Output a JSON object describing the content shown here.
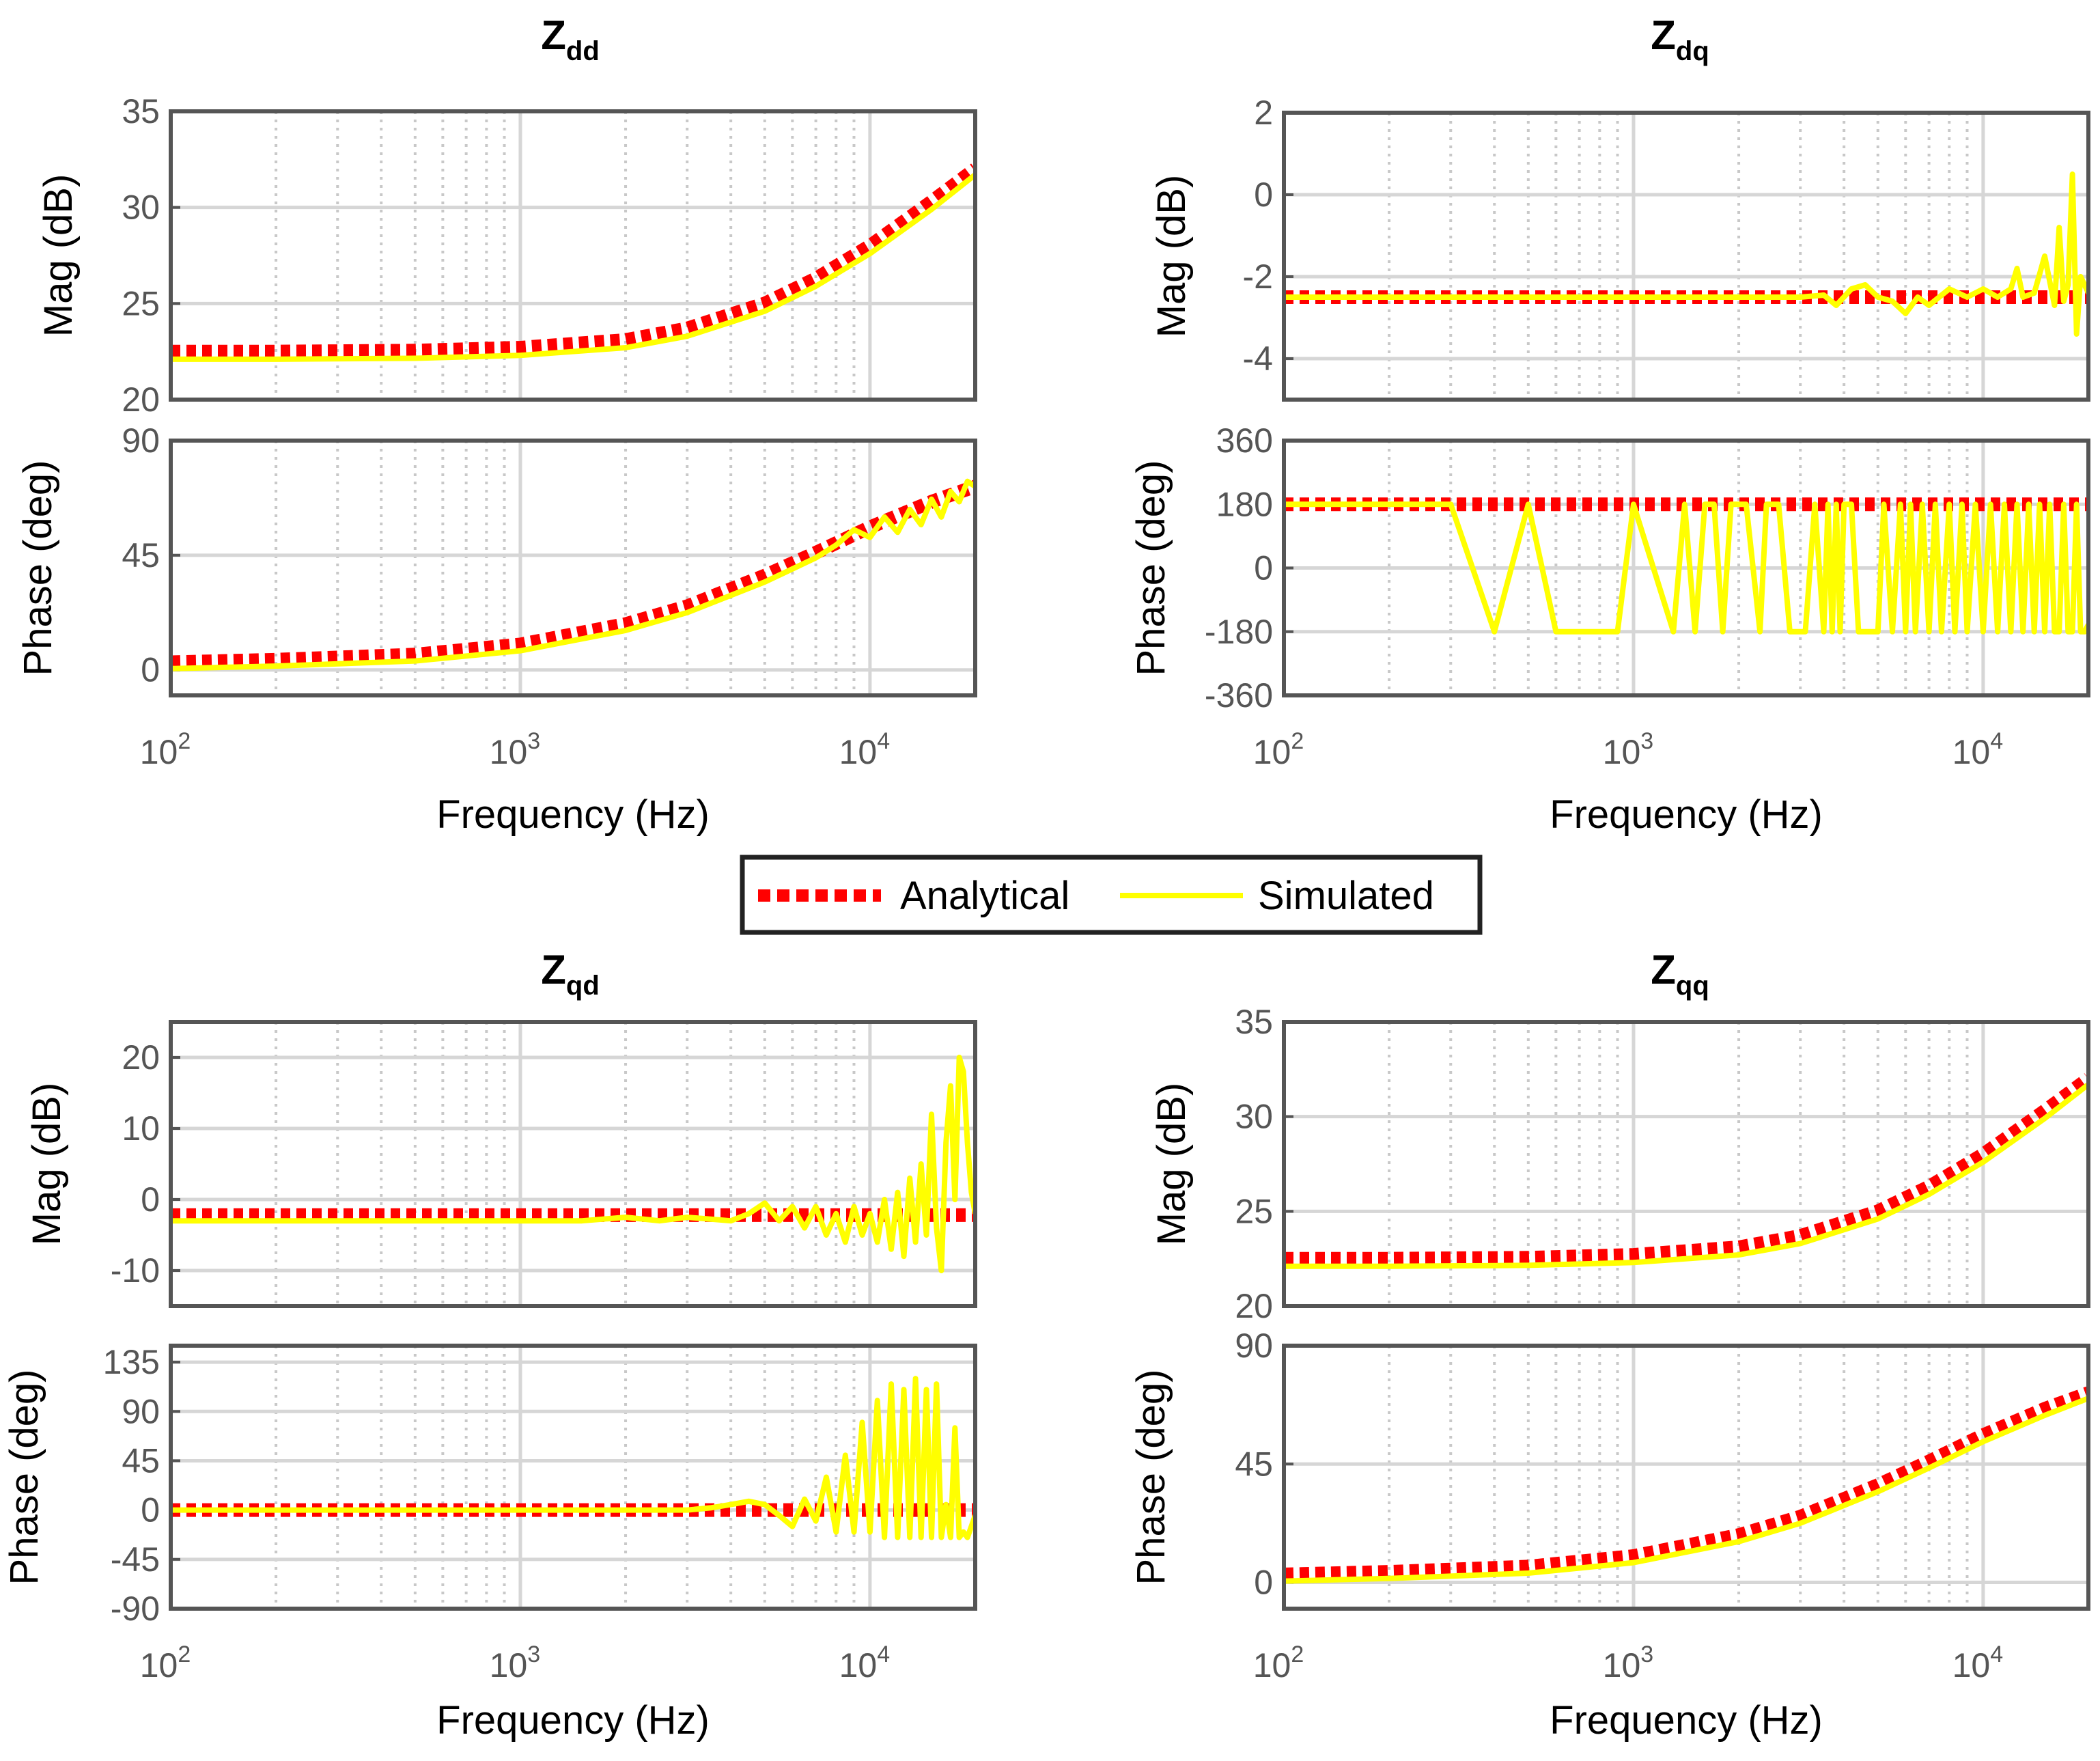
{
  "legend": {
    "entries": [
      {
        "label": "Analytical",
        "color": "#ff0000",
        "style": "dotted"
      },
      {
        "label": "Simulated",
        "color": "#ffff00",
        "style": "solid"
      }
    ]
  },
  "chart_data": [
    {
      "type": "line",
      "title": "Z",
      "title_sub": "dd",
      "xlabel": "Frequency  (Hz)",
      "xscale": "log",
      "xlim": [
        100,
        20000
      ],
      "xticks": [
        {
          "base": "10",
          "exp": "2"
        },
        {
          "base": "10",
          "exp": "3"
        },
        {
          "base": "10",
          "exp": "4"
        }
      ],
      "magnitude": {
        "ylabel": "Mag (dB)",
        "ylim": [
          20,
          35
        ],
        "yticks": [
          "35",
          "30",
          "25",
          "20"
        ],
        "series": [
          {
            "name": "Analytical",
            "x": [
              100,
              200,
              500,
              1000,
              2000,
              3000,
              5000,
              7000,
              10000,
              15000,
              20000
            ],
            "y": [
              22.5,
              22.5,
              22.55,
              22.7,
              23.1,
              23.7,
              25.0,
              26.3,
              28.0,
              30.3,
              32.0
            ]
          },
          {
            "name": "Simulated",
            "x": [
              100,
              200,
              500,
              1000,
              2000,
              3000,
              5000,
              7000,
              10000,
              15000,
              20000
            ],
            "y": [
              22.1,
              22.1,
              22.15,
              22.3,
              22.7,
              23.3,
              24.6,
              25.9,
              27.6,
              29.9,
              31.7
            ]
          }
        ]
      },
      "phase": {
        "ylabel": "Phase (deg)",
        "ylim": [
          -10,
          90
        ],
        "yticks": [
          "90",
          "45",
          "0"
        ],
        "series": [
          {
            "name": "Analytical",
            "x": [
              100,
              200,
              500,
              1000,
              2000,
              3000,
              5000,
              7000,
              10000,
              15000,
              20000
            ],
            "y": [
              3,
              4,
              6,
              10,
              18,
              25,
              37,
              46,
              56,
              66,
              72
            ]
          },
          {
            "name": "Simulated",
            "x": [
              100,
              200,
              500,
              1000,
              2000,
              3000,
              5000,
              7000,
              8000,
              9000,
              10000,
              11000,
              12000,
              13000,
              14000,
              15000,
              16000,
              17000,
              18000,
              19000,
              20000
            ],
            "y": [
              0.5,
              1.5,
              3.5,
              7.5,
              15.5,
              22.5,
              34.5,
              44,
              49,
              55,
              52,
              60,
              54,
              63,
              57,
              67,
              60,
              70,
              66,
              74,
              72
            ]
          }
        ]
      }
    },
    {
      "type": "line",
      "title": "Z",
      "title_sub": "dq",
      "xlabel": "Frequency  (Hz)",
      "xscale": "log",
      "xlim": [
        100,
        20000
      ],
      "xticks": [
        {
          "base": "10",
          "exp": "2"
        },
        {
          "base": "10",
          "exp": "3"
        },
        {
          "base": "10",
          "exp": "4"
        }
      ],
      "magnitude": {
        "ylabel": "Mag (dB)",
        "ylim": [
          -5,
          2
        ],
        "yticks": [
          "2",
          "0",
          "-2",
          "-4"
        ],
        "series": [
          {
            "name": "Analytical",
            "x": [
              100,
              20000
            ],
            "y": [
              -2.5,
              -2.5
            ]
          },
          {
            "name": "Simulated",
            "x": [
              100,
              3000,
              3500,
              3800,
              4200,
              4600,
              5000,
              5500,
              6000,
              6500,
              7000,
              8000,
              9000,
              10000,
              11000,
              12000,
              12500,
              13000,
              14000,
              15000,
              16000,
              16500,
              17000,
              17500,
              18000,
              18500,
              19000,
              20000
            ],
            "y": [
              -2.5,
              -2.5,
              -2.45,
              -2.7,
              -2.3,
              -2.2,
              -2.5,
              -2.6,
              -2.9,
              -2.5,
              -2.7,
              -2.3,
              -2.5,
              -2.3,
              -2.5,
              -2.3,
              -1.8,
              -2.5,
              -2.4,
              -1.5,
              -2.7,
              -0.8,
              -2.6,
              -2.2,
              0.5,
              -3.4,
              -2.0,
              -2.4
            ]
          }
        ]
      },
      "phase": {
        "ylabel": "Phase (deg)",
        "ylim": [
          -360,
          360
        ],
        "yticks": [
          "360",
          "180",
          "0",
          "-180",
          "-360"
        ],
        "series": [
          {
            "name": "Analytical",
            "x": [
              100,
              20000
            ],
            "y": [
              180,
              180
            ]
          },
          {
            "name": "Simulated",
            "x": [
              100,
              300,
              400,
              500,
              600,
              700,
              900,
              1000,
              1300,
              1400,
              1500,
              1600,
              1700,
              1800,
              1900,
              2100,
              2300,
              2400,
              2600,
              2800,
              3100,
              3300,
              3500,
              3600,
              3700,
              3800,
              3900,
              4000,
              4200,
              4400,
              5000,
              5200,
              5500,
              5800,
              6000,
              6200,
              6400,
              6700,
              7000,
              7300,
              7600,
              8000,
              8300,
              8700,
              9000,
              9500,
              10000,
              10500,
              11000,
              11500,
              12000,
              12500,
              13000,
              13500,
              14000,
              14500,
              15000,
              15500,
              16000,
              16500,
              17000,
              17500,
              18000,
              18500,
              19000,
              19500,
              20000
            ],
            "y": [
              180,
              180,
              -180,
              180,
              -180,
              -180,
              -180,
              180,
              -180,
              180,
              -180,
              180,
              180,
              -180,
              180,
              180,
              -180,
              180,
              180,
              -180,
              -180,
              180,
              -180,
              180,
              -180,
              180,
              -180,
              180,
              180,
              -180,
              -180,
              180,
              -180,
              180,
              -180,
              180,
              -180,
              180,
              -180,
              180,
              -180,
              180,
              -180,
              180,
              -180,
              180,
              -180,
              180,
              -180,
              180,
              -180,
              180,
              -180,
              180,
              -180,
              180,
              -180,
              180,
              -180,
              -180,
              180,
              -180,
              -180,
              180,
              -180,
              -180,
              -160
            ]
          }
        ]
      }
    },
    {
      "type": "line",
      "title": "Z",
      "title_sub": "qd",
      "xlabel": "Frequency  (Hz)",
      "xscale": "log",
      "xlim": [
        100,
        20000
      ],
      "xticks": [
        {
          "base": "10",
          "exp": "2"
        },
        {
          "base": "10",
          "exp": "3"
        },
        {
          "base": "10",
          "exp": "4"
        }
      ],
      "magnitude": {
        "ylabel": "Mag (dB)",
        "ylim": [
          -15,
          25
        ],
        "yticks": [
          "20",
          "10",
          "0",
          "-10"
        ],
        "series": [
          {
            "name": "Analytical",
            "x": [
              100,
              20000
            ],
            "y": [
              -2.2,
              -2.2
            ]
          },
          {
            "name": "Simulated",
            "x": [
              100,
              1000,
              1500,
              2000,
              2500,
              3000,
              4000,
              4500,
              5000,
              5500,
              6000,
              6500,
              7000,
              7500,
              8000,
              8500,
              9000,
              9500,
              10000,
              10500,
              11000,
              11500,
              12000,
              12500,
              13000,
              13500,
              14000,
              14500,
              15000,
              15500,
              16000,
              16500,
              17000,
              17500,
              18000,
              18500,
              19000,
              19500,
              20000
            ],
            "y": [
              -3,
              -3,
              -3,
              -2.5,
              -3,
              -2.5,
              -3,
              -2,
              -0.5,
              -3,
              -1,
              -4,
              -1,
              -5,
              -2,
              -6,
              -1,
              -5,
              -2,
              -6,
              0,
              -7,
              1,
              -8,
              3,
              -6,
              5,
              -5,
              12,
              -4,
              -10,
              8,
              16,
              0,
              20,
              18,
              8,
              1,
              -2
            ]
          }
        ]
      },
      "phase": {
        "ylabel": "Phase (deg)",
        "ylim": [
          -90,
          150
        ],
        "yticks": [
          "135",
          "90",
          "45",
          "0",
          "-45",
          "-90"
        ],
        "series": [
          {
            "name": "Analytical",
            "x": [
              100,
              20000
            ],
            "y": [
              0,
              0
            ]
          },
          {
            "name": "Simulated",
            "x": [
              100,
              3000,
              3500,
              4000,
              4500,
              5000,
              5500,
              6000,
              6500,
              7000,
              7500,
              8000,
              8500,
              9000,
              9500,
              10000,
              10500,
              11000,
              11500,
              12000,
              12500,
              13000,
              13500,
              14000,
              14500,
              15000,
              15500,
              16000,
              16500,
              17000,
              17500,
              18000,
              18500,
              19000,
              20000
            ],
            "y": [
              0,
              0,
              2,
              5,
              8,
              5,
              -5,
              -15,
              10,
              -10,
              30,
              -20,
              50,
              -20,
              80,
              -20,
              100,
              -25,
              115,
              -25,
              110,
              -25,
              120,
              -25,
              110,
              -25,
              115,
              -25,
              5,
              -25,
              75,
              -25,
              -20,
              -25,
              -5
            ]
          }
        ]
      }
    },
    {
      "type": "line",
      "title": "Z",
      "title_sub": "qq",
      "xlabel": "Frequency  (Hz)",
      "xscale": "log",
      "xlim": [
        100,
        20000
      ],
      "xticks": [
        {
          "base": "10",
          "exp": "2"
        },
        {
          "base": "10",
          "exp": "3"
        },
        {
          "base": "10",
          "exp": "4"
        }
      ],
      "magnitude": {
        "ylabel": "Mag (dB)",
        "ylim": [
          20,
          35
        ],
        "yticks": [
          "35",
          "30",
          "25",
          "20"
        ],
        "series": [
          {
            "name": "Analytical",
            "x": [
              100,
              200,
              500,
              1000,
              2000,
              3000,
              5000,
              7000,
              10000,
              15000,
              20000
            ],
            "y": [
              22.5,
              22.5,
              22.55,
              22.7,
              23.1,
              23.7,
              25.0,
              26.3,
              28.0,
              30.3,
              32.0
            ]
          },
          {
            "name": "Simulated",
            "x": [
              100,
              200,
              500,
              1000,
              2000,
              3000,
              5000,
              7000,
              10000,
              15000,
              20000
            ],
            "y": [
              22.1,
              22.1,
              22.15,
              22.3,
              22.7,
              23.3,
              24.6,
              25.9,
              27.6,
              29.9,
              31.7
            ]
          }
        ]
      },
      "phase": {
        "ylabel": "Phase (deg)",
        "ylim": [
          -10,
          90
        ],
        "yticks": [
          "90",
          "45",
          "0"
        ],
        "series": [
          {
            "name": "Analytical",
            "x": [
              100,
              200,
              500,
              1000,
              2000,
              3000,
              5000,
              7000,
              10000,
              15000,
              20000
            ],
            "y": [
              3,
              4,
              6,
              10,
              18,
              25,
              37,
              46,
              56,
              66,
              72
            ]
          },
          {
            "name": "Simulated",
            "x": [
              100,
              200,
              500,
              1000,
              2000,
              3000,
              5000,
              7000,
              10000,
              15000,
              20000
            ],
            "y": [
              0.5,
              1.5,
              3.5,
              7.5,
              15.5,
              22.5,
              34.5,
              43.5,
              53.5,
              63.5,
              70
            ]
          }
        ]
      }
    }
  ]
}
